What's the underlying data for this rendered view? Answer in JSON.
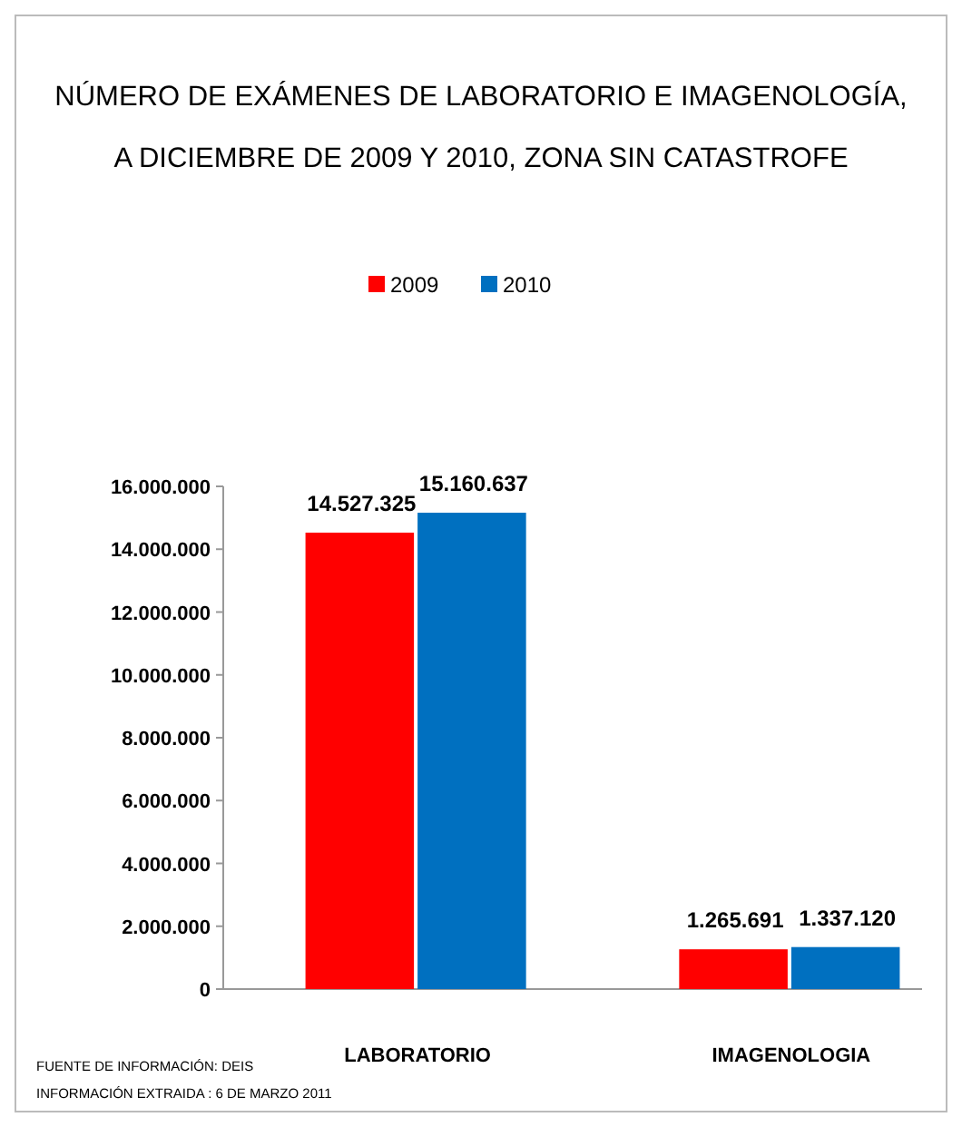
{
  "chart_data": {
    "type": "bar",
    "title": "NÚMERO DE EXÁMENES DE LABORATORIO E IMAGENOLOGÍA, A DICIEMBRE DE 2009 Y 2010, ZONA SIN CATASTROFE",
    "categories": [
      "LABORATORIO",
      "IMAGENOLOGIA"
    ],
    "series": [
      {
        "name": "2009",
        "color": "#ff0000",
        "values": [
          14527325,
          1265691
        ],
        "value_labels": [
          "14.527.325",
          "1.265.691"
        ]
      },
      {
        "name": "2010",
        "color": "#0070c0",
        "values": [
          15160637,
          1337120
        ],
        "value_labels": [
          "15.160.637",
          "1.337.120"
        ]
      }
    ],
    "ylim": [
      0,
      16000000
    ],
    "yticks": [
      0,
      {
        "value": 2000000,
        "label": "2.000.000"
      },
      {
        "value": 4000000,
        "label": "4.000.000"
      },
      {
        "value": 6000000,
        "label": "6.000.000"
      },
      {
        "value": 8000000,
        "label": "8.000.000"
      },
      {
        "value": 10000000,
        "label": "10.000.000"
      },
      {
        "value": 12000000,
        "label": "12.000.000"
      },
      {
        "value": 14000000,
        "label": "14.000.000"
      },
      {
        "value": 16000000,
        "label": "16.000.000"
      }
    ],
    "legend": "top",
    "grid": false,
    "annotations": [
      "FUENTE DE INFORMACIÓN: DEIS",
      "INFORMACIÓN EXTRAIDA : 6 DE MARZO 2011"
    ]
  }
}
